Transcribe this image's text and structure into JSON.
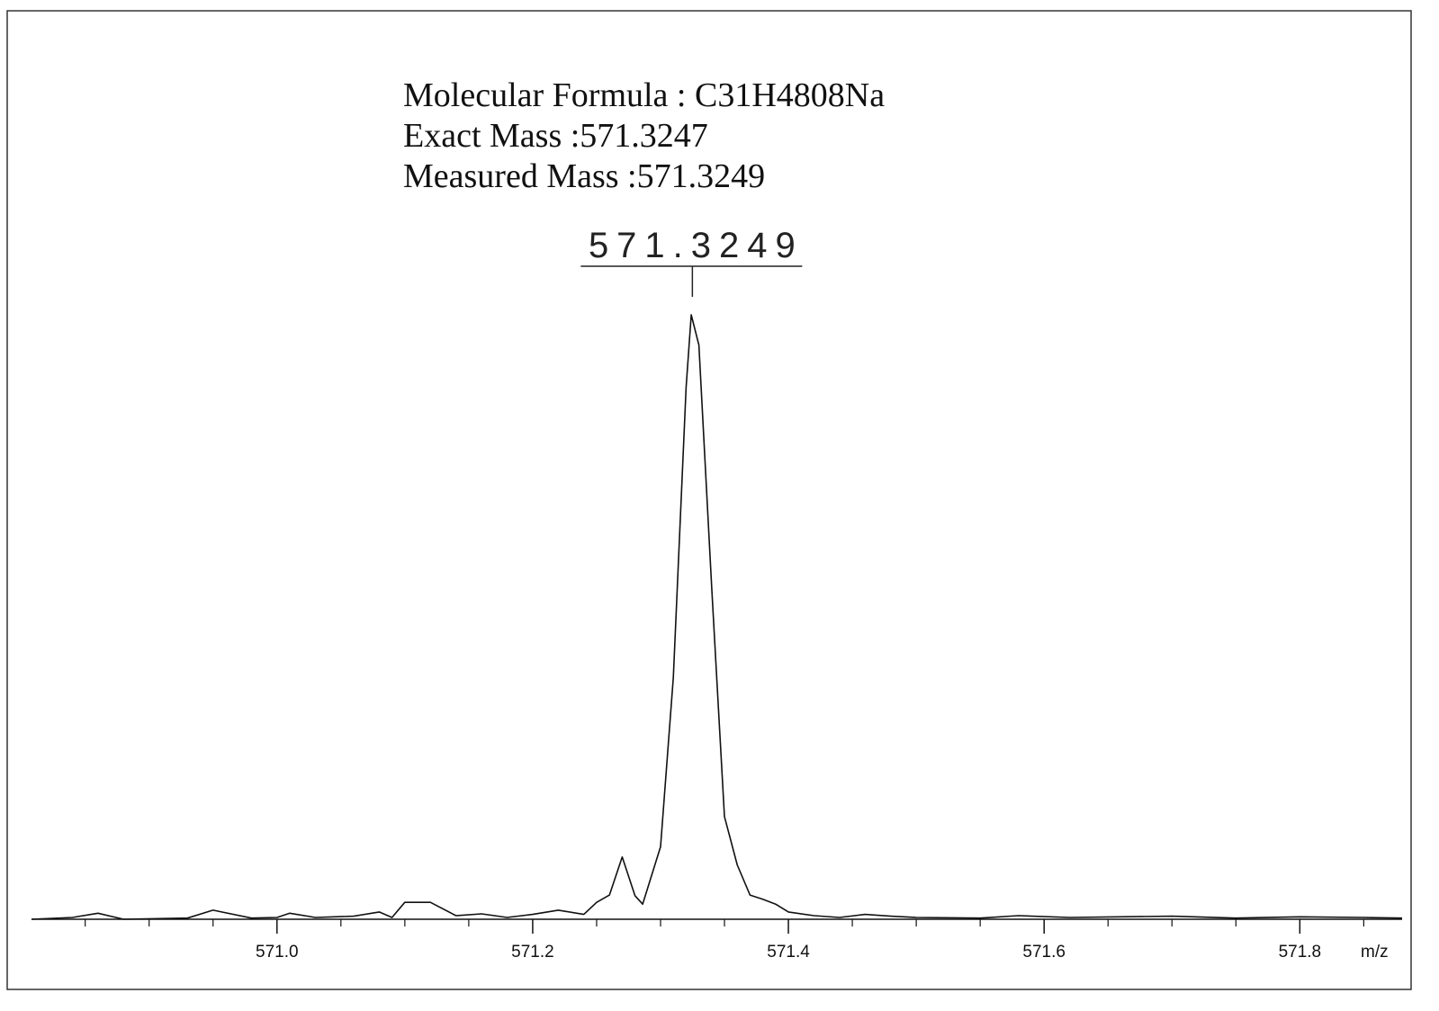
{
  "chart_data": {
    "type": "line",
    "annotations": [
      "Molecular Formula : C31H4808Na",
      "Exact Mass :571.3247",
      "Measured Mass :571.3249"
    ],
    "x_label": "m/z",
    "peak_labels": [
      571.3249
    ],
    "x": [
      570.808,
      570.84,
      570.86,
      570.88,
      570.93,
      570.95,
      570.98,
      571.0,
      571.01,
      571.03,
      571.06,
      571.08,
      571.09,
      571.1,
      571.12,
      571.14,
      571.16,
      571.18,
      571.2,
      571.22,
      571.24,
      571.25,
      571.26,
      571.27,
      571.28,
      571.286,
      571.3,
      571.31,
      571.32,
      571.324,
      571.33,
      571.34,
      571.35,
      571.36,
      571.37,
      571.38,
      571.39,
      571.4,
      571.42,
      571.44,
      571.46,
      571.48,
      571.5,
      571.55,
      571.58,
      571.62,
      571.7,
      571.75,
      571.8,
      571.85,
      571.88
    ],
    "series": [
      {
        "color": "#111111",
        "values": [
          0,
          0.3,
          1,
          0,
          0.2,
          1.5,
          0.2,
          0.3,
          1,
          0.3,
          0.5,
          1.2,
          0.3,
          2.8,
          2.8,
          0.6,
          0.9,
          0.3,
          0.8,
          1.5,
          0.8,
          2.8,
          4,
          10.3,
          3.9,
          2.5,
          12,
          40,
          88,
          100,
          95,
          55,
          17,
          9,
          4,
          3.3,
          2.5,
          1.2,
          0.6,
          0.3,
          0.8,
          0.5,
          0.3,
          0.2,
          0.6,
          0.3,
          0.5,
          0.2,
          0.4,
          0.3,
          0.2
        ]
      }
    ],
    "xlim": [
      570.808,
      571.88
    ],
    "ylim": [
      0,
      100
    ],
    "xticks": [
      {
        "value": 571.0,
        "label": "571.0"
      },
      {
        "value": 571.2,
        "label": "571.2"
      },
      {
        "value": 571.4,
        "label": "571.4"
      },
      {
        "value": 571.6,
        "label": "571.6"
      },
      {
        "value": 571.8,
        "label": "571.8"
      }
    ],
    "xticks_minor": [
      570.85,
      570.9,
      570.95,
      571.05,
      571.1,
      571.15,
      571.25,
      571.3,
      571.35,
      571.45,
      571.5,
      571.55,
      571.65,
      571.7,
      571.75,
      571.85
    ]
  }
}
